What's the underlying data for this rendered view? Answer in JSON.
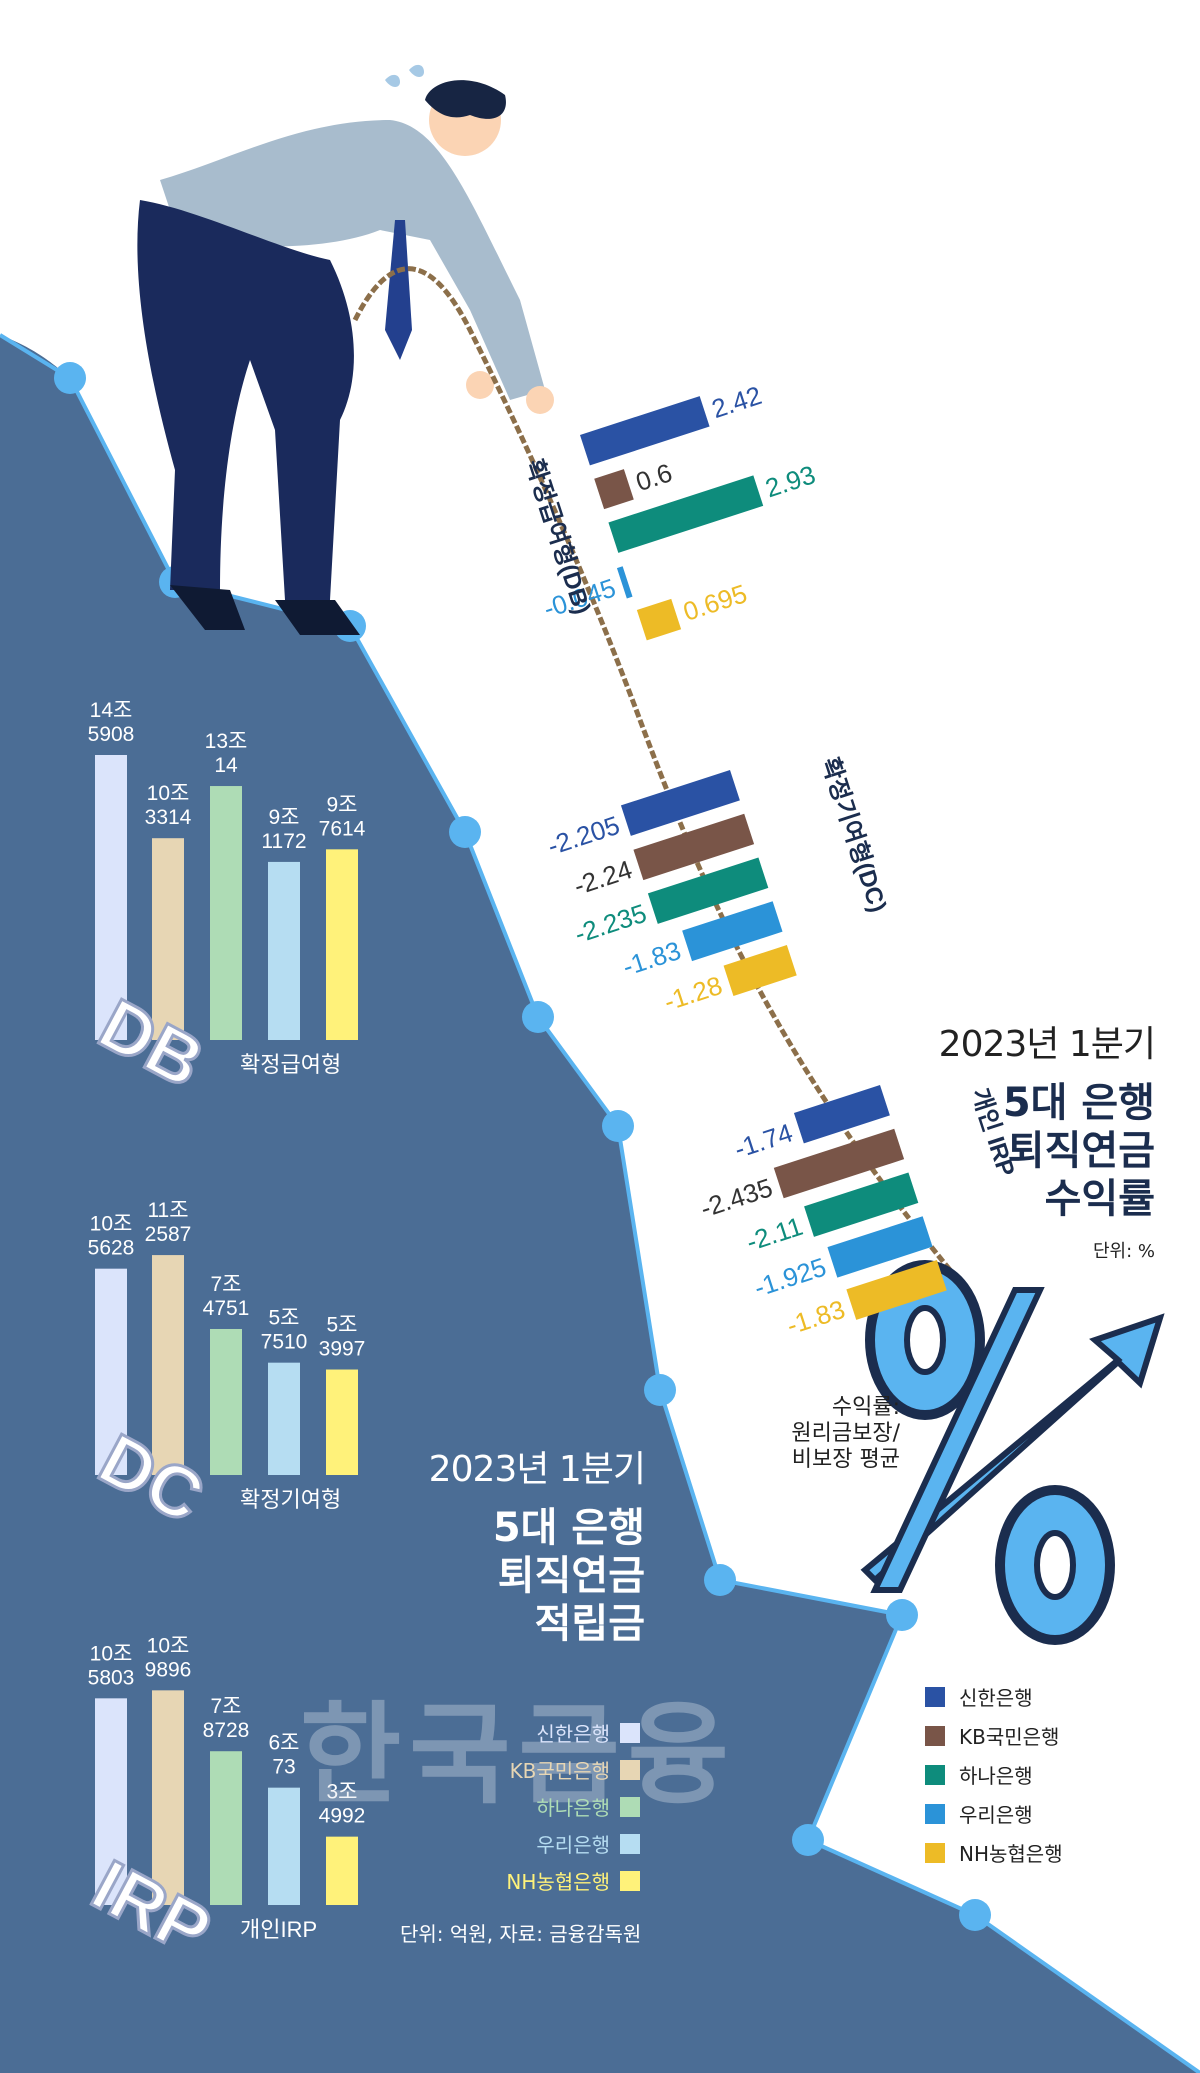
{
  "returns": {
    "title_sub": "2023년 1분기",
    "title_main": [
      "5대 은행",
      "퇴직연금",
      "수익률"
    ],
    "unit": "단위: %",
    "note": [
      "수익률:",
      "원리금보장/",
      "비보장 평균"
    ],
    "legend": [
      {
        "label": "신한은행",
        "color": "#2a52a4"
      },
      {
        "label": "KB국민은행",
        "color": "#795548"
      },
      {
        "label": "하나은행",
        "color": "#0e8c7c"
      },
      {
        "label": "우리은행",
        "color": "#2b93d8"
      },
      {
        "label": "NH농협은행",
        "color": "#edbb26"
      }
    ]
  },
  "reserves": {
    "title_sub": "2023년 1분기",
    "title_main": [
      "5대 은행",
      "퇴직연금",
      "적립금"
    ],
    "footnote": "단위: 억원, 자료: 금융감독원",
    "legend": [
      {
        "label": "신한은행",
        "color": "#dbe4fb"
      },
      {
        "label": "KB국민은행",
        "color": "#e7d6b4"
      },
      {
        "label": "하나은행",
        "color": "#aedcb5"
      },
      {
        "label": "우리은행",
        "color": "#b6ddf2"
      },
      {
        "label": "NH농협은행",
        "color": "#fff27a"
      }
    ]
  },
  "watermark": "한국금융",
  "chart_data": [
    {
      "type": "bar",
      "title": "2023년 1분기 5대 은행 퇴직연금 수익률",
      "unit": "단위: %",
      "groups": [
        {
          "label": "확정급여형(DB)",
          "values": [
            2.42,
            0.6,
            2.93,
            -0.045,
            0.695
          ],
          "value_labels": [
            "2.42",
            "0.6",
            "2.93",
            "-0.045",
            "0.695"
          ]
        },
        {
          "label": "확정기여형(DC)",
          "values": [
            -2.205,
            -2.24,
            -2.235,
            -1.83,
            -1.28
          ],
          "value_labels": [
            "-2.205",
            "-2.24",
            "-2.235",
            "-1.83",
            "-1.28"
          ]
        },
        {
          "label": "개인 IRP",
          "values": [
            -1.74,
            -2.435,
            -2.11,
            -1.925,
            -1.83
          ],
          "value_labels": [
            "-1.74",
            "-2.435",
            "-2.11",
            "-1.925",
            "-1.83"
          ]
        }
      ],
      "series": [
        "신한은행",
        "KB국민은행",
        "하나은행",
        "우리은행",
        "NH농협은행"
      ]
    },
    {
      "type": "bar",
      "title": "2023년 1분기 5대 은행 퇴직연금 적립금",
      "unit": "단위: 억원",
      "source": "자료: 금융감독원",
      "series": [
        "신한은행",
        "KB국민은행",
        "하나은행",
        "우리은행",
        "NH농협은행"
      ],
      "groups": [
        {
          "label": "DB",
          "caption": "확정급여형",
          "values": [
            145908,
            103314,
            130014,
            91172,
            97614
          ],
          "value_labels": [
            [
              "14조",
              "5908"
            ],
            [
              "10조",
              "3314"
            ],
            [
              "13조",
              "14"
            ],
            [
              "9조",
              "1172"
            ],
            [
              "9조",
              "7614"
            ]
          ]
        },
        {
          "label": "DC",
          "caption": "확정기여형",
          "values": [
            105628,
            112587,
            74751,
            57510,
            53997
          ],
          "value_labels": [
            [
              "10조",
              "5628"
            ],
            [
              "11조",
              "2587"
            ],
            [
              "7조",
              "4751"
            ],
            [
              "5조",
              "7510"
            ],
            [
              "5조",
              "3997"
            ]
          ]
        },
        {
          "label": "IRP",
          "caption": "개인IRP",
          "values": [
            105803,
            109896,
            78728,
            60073,
            34992
          ],
          "value_labels": [
            [
              "10조",
              "5803"
            ],
            [
              "10조",
              "9896"
            ],
            [
              "7조",
              "8728"
            ],
            [
              "6조",
              "73"
            ],
            [
              "3조",
              "4992"
            ]
          ]
        }
      ]
    }
  ]
}
